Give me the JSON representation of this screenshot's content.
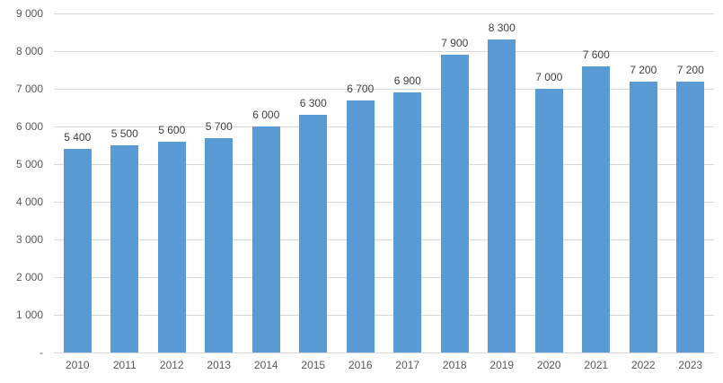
{
  "chart_data": {
    "type": "bar",
    "title": "",
    "xlabel": "",
    "ylabel": "",
    "categories": [
      "2010",
      "2011",
      "2012",
      "2013",
      "2014",
      "2015",
      "2016",
      "2017",
      "2018",
      "2019",
      "2020",
      "2021",
      "2022",
      "2023"
    ],
    "values": [
      5400,
      5500,
      5600,
      5700,
      6000,
      6300,
      6700,
      6900,
      7900,
      8300,
      7000,
      7600,
      7200,
      7200
    ],
    "value_labels": [
      "5 400",
      "5 500",
      "5 600",
      "5 700",
      "6 000",
      "6 300",
      "6 700",
      "6 900",
      "7 900",
      "8 300",
      "7 000",
      "7 600",
      "7 200",
      "7 200"
    ],
    "ylim": [
      0,
      9000
    ],
    "grid": true,
    "legend": "none",
    "y_ticks": [
      {
        "label": "9 000",
        "value": 9000
      },
      {
        "label": "8 000",
        "value": 8000
      },
      {
        "label": "7 000",
        "value": 7000
      },
      {
        "label": "6 000",
        "value": 6000
      },
      {
        "label": "5 000",
        "value": 5000
      },
      {
        "label": "4 000",
        "value": 4000
      },
      {
        "label": "3 000",
        "value": 3000
      },
      {
        "label": "2 000",
        "value": 2000
      },
      {
        "label": "1 000",
        "value": 1000
      },
      {
        "label": "-",
        "value": 0
      }
    ],
    "colors": {
      "bar_fill": "#5B9BD5",
      "gridline": "#D9D9D9",
      "axis_line": "#D9D9D9",
      "tick_label": "#595959",
      "data_label": "#404040",
      "background": "#ffffff"
    }
  }
}
